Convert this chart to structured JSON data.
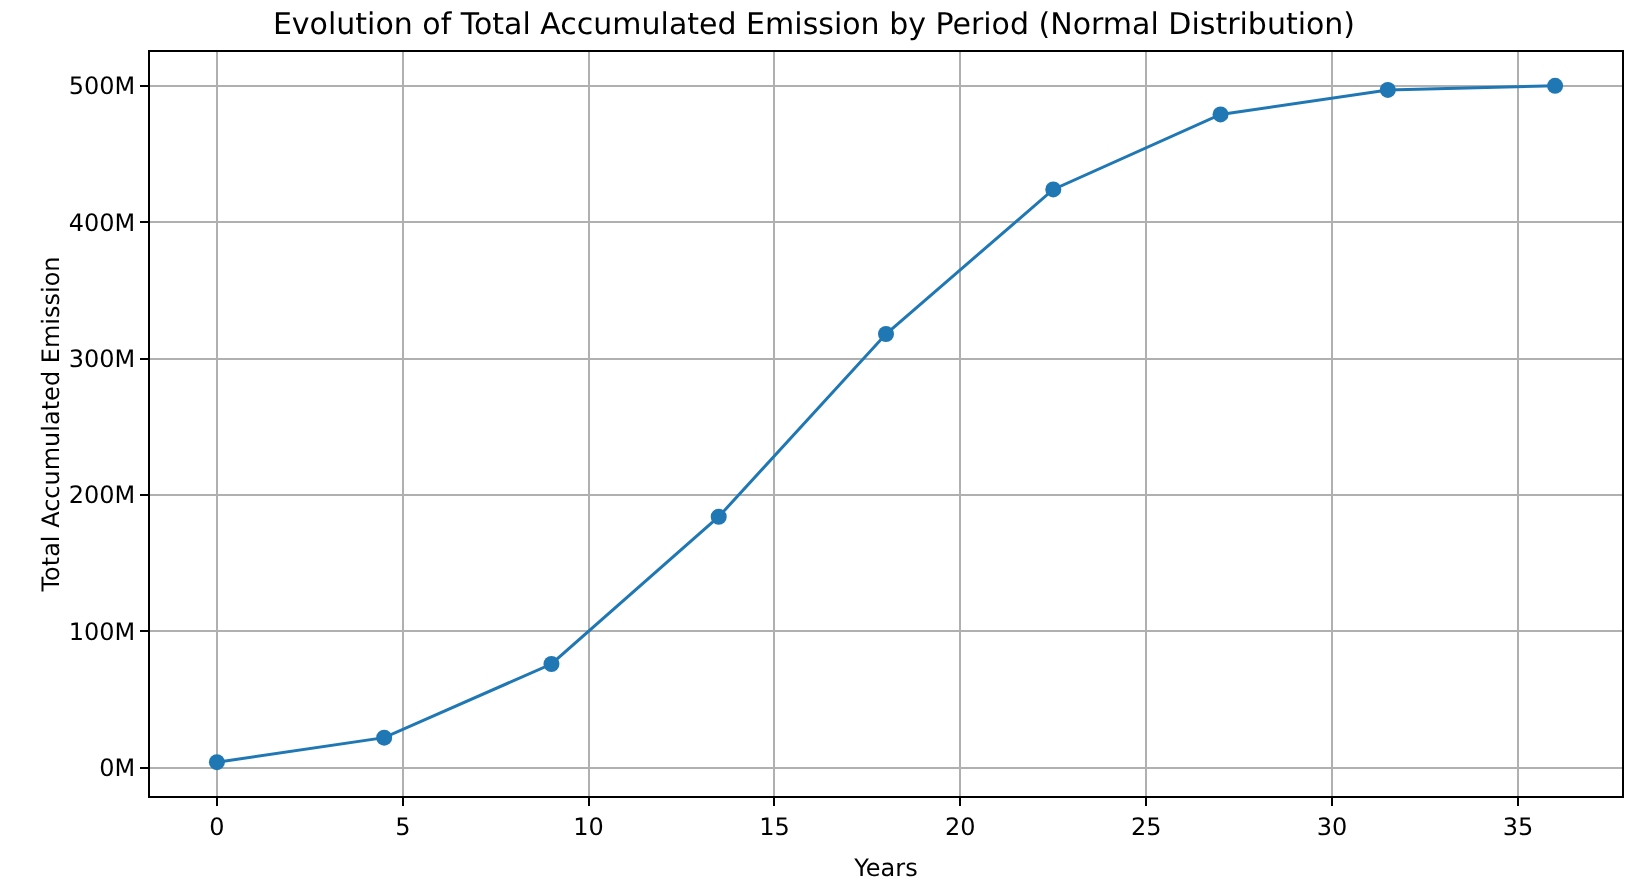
{
  "chart_data": {
    "type": "line",
    "title": "Evolution of Total Accumulated Emission by Period (Normal Distribution)",
    "xlabel": "Years",
    "ylabel": "Total Accumulated Emission",
    "x": [
      0,
      4.5,
      9,
      13.5,
      18,
      22.5,
      27,
      31.5,
      36
    ],
    "series": [
      {
        "color": "#1f77b4",
        "values": [
          4,
          22,
          76,
          184,
          318,
          424,
          479,
          497,
          500
        ]
      }
    ],
    "xlim": [
      -1.8,
      37.8
    ],
    "xticks": [
      0,
      5,
      10,
      15,
      20,
      25,
      30,
      35
    ],
    "ylim": [
      -20.8,
      524.8
    ],
    "yticks": [
      {
        "value": 0,
        "label": "0M"
      },
      {
        "value": 100,
        "label": "100M"
      },
      {
        "value": 200,
        "label": "200M"
      },
      {
        "value": 300,
        "label": "300M"
      },
      {
        "value": 400,
        "label": "400M"
      },
      {
        "value": 500,
        "label": "500M"
      }
    ],
    "grid": true,
    "marker": "circle",
    "line_style": "solid"
  }
}
